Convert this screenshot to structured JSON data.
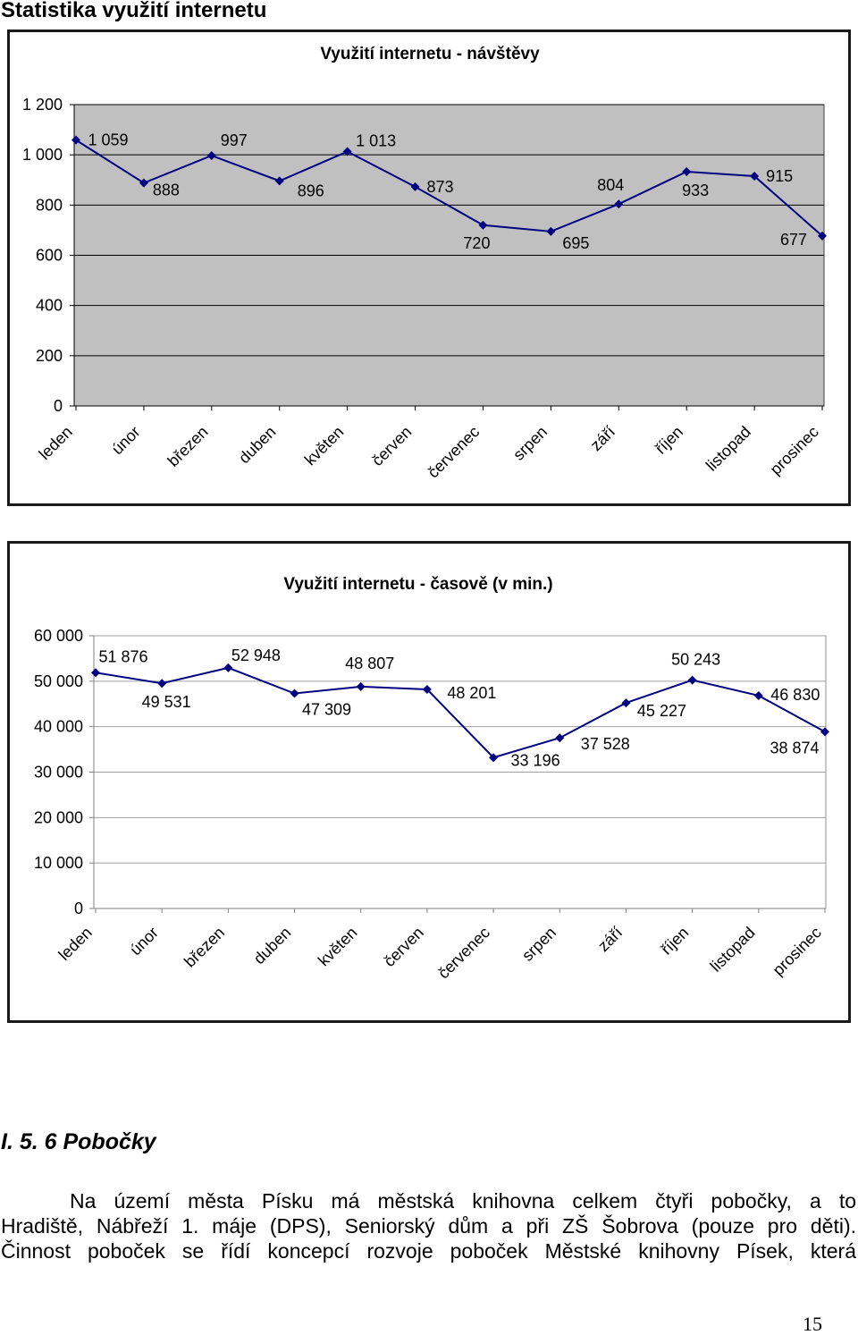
{
  "page": {
    "title": "Statistika využití internetu",
    "page_number": "15"
  },
  "section": {
    "heading": "I. 5. 6 Pobočky",
    "lines": [
      "Na území města Písku má městská knihovna celkem čtyři pobočky, a to",
      "Hradiště, Nábřeží 1. máje (DPS), Seniorský dům a při ZŠ Šobrova (pouze pro děti).",
      "Činnost poboček se řídí koncepcí rozvoje poboček Městské knihovny Písek, která"
    ]
  },
  "chart_data": [
    {
      "type": "line",
      "title": "Využití internetu - návštěvy",
      "categories": [
        "leden",
        "únor",
        "březen",
        "duben",
        "květen",
        "červen",
        "červenec",
        "srpen",
        "září",
        "říjen",
        "listopad",
        "prosinec"
      ],
      "series": [
        {
          "values": [
            1059,
            888,
            997,
            896,
            1013,
            873,
            720,
            695,
            804,
            933,
            915,
            677
          ],
          "labels": [
            "1 059",
            "888",
            "997",
            "896",
            "1 013",
            "873",
            "720",
            "695",
            "804",
            "933",
            "915",
            "677"
          ]
        }
      ],
      "ylim": [
        0,
        1200
      ],
      "yticks": [
        0,
        200,
        400,
        600,
        800,
        1000,
        1200
      ],
      "ytick_labels": [
        "0",
        "200",
        "400",
        "600",
        "800",
        "1 000",
        "1 200"
      ],
      "grid": true,
      "legend": "none",
      "marker": "diamond",
      "plot_background": "#c0c0c0",
      "gridline_color": "#000000",
      "axis_color": "#000000",
      "line_color": "#000080"
    },
    {
      "type": "line",
      "title": "Využití internetu - časově (v min.)",
      "categories": [
        "leden",
        "únor",
        "březen",
        "duben",
        "květen",
        "červen",
        "červenec",
        "srpen",
        "září",
        "říjen",
        "listopad",
        "prosinec"
      ],
      "series": [
        {
          "values": [
            51876,
            49531,
            52948,
            47309,
            48807,
            48201,
            33196,
            37528,
            45227,
            50243,
            46830,
            38874
          ],
          "labels": [
            "51 876",
            "49 531",
            "52 948",
            "47 309",
            "48 807",
            "48 201",
            "33 196",
            "37 528",
            "45 227",
            "50 243",
            "46 830",
            "38 874"
          ]
        }
      ],
      "ylim": [
        0,
        60000
      ],
      "yticks": [
        0,
        10000,
        20000,
        30000,
        40000,
        50000,
        60000
      ],
      "ytick_labels": [
        "0",
        "10 000",
        "20 000",
        "30 000",
        "40 000",
        "50 000",
        "60 000"
      ],
      "grid": true,
      "legend": "none",
      "marker": "diamond",
      "plot_background": "#ffffff",
      "gridline_color": "#a0a0a0",
      "axis_color": "#808080",
      "line_color": "#000080"
    }
  ]
}
